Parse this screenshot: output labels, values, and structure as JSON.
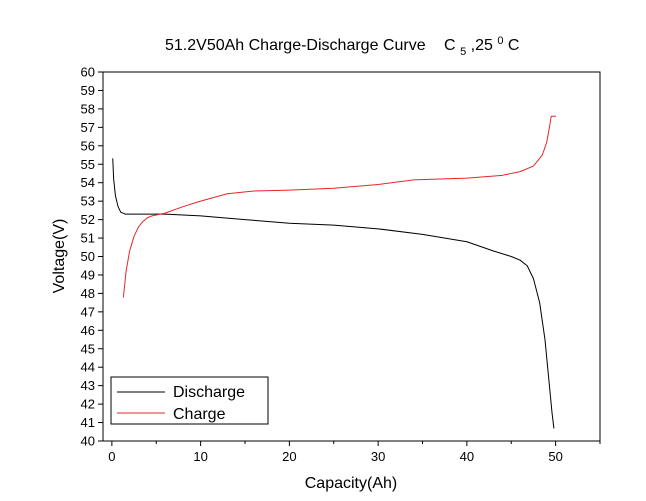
{
  "chart_data": {
    "type": "line",
    "title": "51.2V50Ah Charge-Discharge Curve",
    "title_sym": {
      "base": "C",
      "sub": "5",
      "sep": ",25",
      "sup": "0",
      "unit": "C"
    },
    "xlabel": "Capacity(Ah)",
    "ylabel": "Voltage(V)",
    "xlim": [
      -1,
      55
    ],
    "ylim": [
      40,
      60
    ],
    "xticks": [
      0,
      10,
      20,
      30,
      40,
      50
    ],
    "yticks": [
      40,
      41,
      42,
      43,
      44,
      45,
      46,
      47,
      48,
      49,
      50,
      51,
      52,
      53,
      54,
      55,
      56,
      57,
      58,
      59,
      60
    ],
    "grid": false,
    "legend_position": "bottom-left",
    "series": [
      {
        "name": "Discharge",
        "color": "#000000",
        "x": [
          0.1,
          0.2,
          0.4,
          0.7,
          1.0,
          1.5,
          2,
          3,
          4,
          6,
          10,
          15,
          20,
          25,
          30,
          35,
          40,
          43,
          45,
          46,
          46.8,
          47.5,
          48.2,
          48.8,
          49.2,
          49.6,
          49.8
        ],
        "y": [
          55.3,
          54.2,
          53.3,
          52.7,
          52.4,
          52.3,
          52.3,
          52.3,
          52.3,
          52.3,
          52.2,
          52.0,
          51.8,
          51.7,
          51.5,
          51.2,
          50.8,
          50.3,
          50.0,
          49.8,
          49.5,
          48.8,
          47.5,
          45.5,
          43.5,
          41.5,
          40.7
        ]
      },
      {
        "name": "Charge",
        "color": "#e8262a",
        "x": [
          1.3,
          1.6,
          2.0,
          2.5,
          3.0,
          3.5,
          4.0,
          4.5,
          5,
          6,
          8,
          10,
          13,
          16,
          20,
          25,
          30,
          34,
          40,
          44,
          46,
          47.5,
          48.5,
          49.0,
          49.3,
          49.5,
          49.7,
          50.0
        ],
        "y": [
          47.8,
          49.2,
          50.3,
          51.1,
          51.6,
          51.9,
          52.1,
          52.2,
          52.25,
          52.35,
          52.7,
          53.0,
          53.4,
          53.55,
          53.6,
          53.7,
          53.9,
          54.15,
          54.25,
          54.4,
          54.6,
          54.9,
          55.5,
          56.2,
          57.0,
          57.6,
          57.6,
          57.6
        ]
      }
    ]
  }
}
